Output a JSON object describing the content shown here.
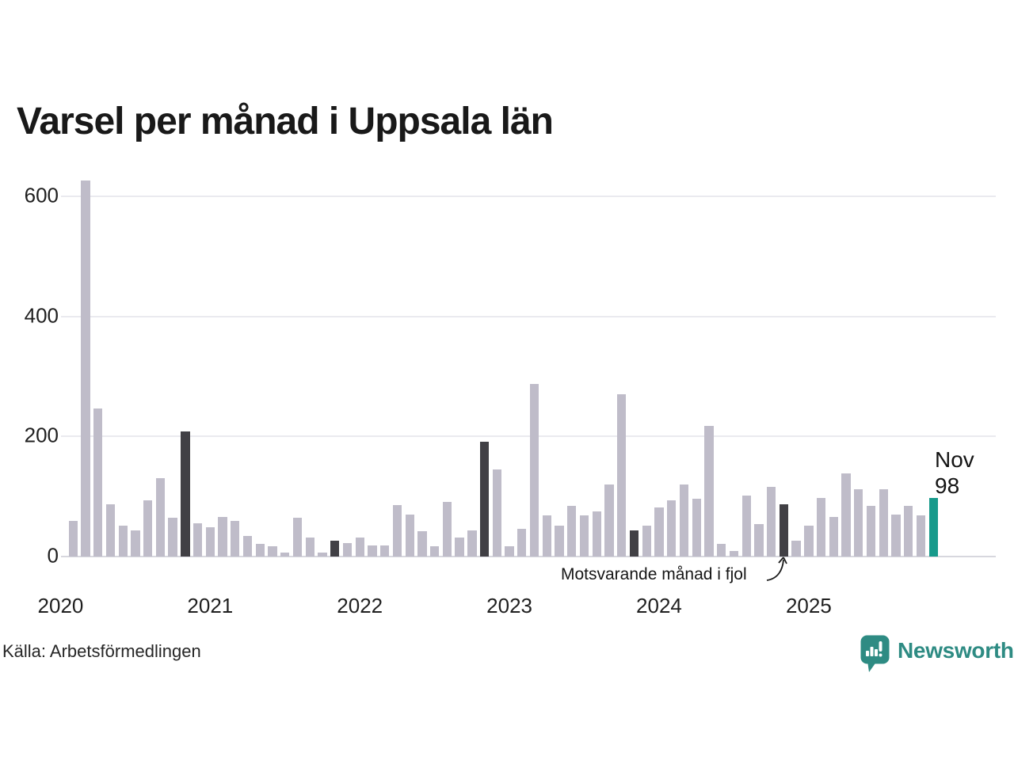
{
  "title": "Varsel per månad i Uppsala län",
  "source": "Källa: Arbetsförmedlingen",
  "branding": {
    "name": "Newsworthy",
    "color": "#2e8b83"
  },
  "annotation": {
    "text": "Motsvarande månad i fjol"
  },
  "current_point": {
    "month": "Nov",
    "value": "98"
  },
  "chart_data": {
    "type": "bar",
    "title": "Varsel per månad i Uppsala län",
    "x": [
      "Feb 2020",
      "Mar 2020",
      "Apr 2020",
      "Maj 2020",
      "Jun 2020",
      "Jul 2020",
      "Aug 2020",
      "Sep 2020",
      "Okt 2020",
      "Nov 2020",
      "Dec 2020",
      "Jan 2021",
      "Feb 2021",
      "Mar 2021",
      "Apr 2021",
      "Maj 2021",
      "Jun 2021",
      "Jul 2021",
      "Aug 2021",
      "Sep 2021",
      "Okt 2021",
      "Nov 2021",
      "Dec 2021",
      "Jan 2022",
      "Feb 2022",
      "Mar 2022",
      "Apr 2022",
      "Maj 2022",
      "Jun 2022",
      "Jul 2022",
      "Aug 2022",
      "Sep 2022",
      "Okt 2022",
      "Nov 2022",
      "Dec 2022",
      "Jan 2023",
      "Feb 2023",
      "Mar 2023",
      "Apr 2023",
      "Maj 2023",
      "Jun 2023",
      "Jul 2023",
      "Aug 2023",
      "Sep 2023",
      "Okt 2023",
      "Nov 2023",
      "Dec 2023",
      "Jan 2024",
      "Feb 2024",
      "Mar 2024",
      "Apr 2024",
      "Maj 2024",
      "Jun 2024",
      "Jul 2024",
      "Aug 2024",
      "Sep 2024",
      "Okt 2024",
      "Nov 2024",
      "Dec 2024",
      "Jan 2025",
      "Feb 2025",
      "Mar 2025",
      "Apr 2025",
      "Maj 2025",
      "Jun 2025",
      "Jul 2025",
      "Aug 2025",
      "Sep 2025",
      "Okt 2025",
      "Nov 2025"
    ],
    "values": [
      59,
      627,
      247,
      87,
      51,
      44,
      93,
      131,
      64,
      209,
      56,
      49,
      66,
      60,
      34,
      21,
      17,
      6,
      65,
      31,
      6,
      26,
      22,
      31,
      18,
      19,
      86,
      70,
      42,
      17,
      91,
      31,
      43,
      191,
      145,
      17,
      46,
      288,
      69,
      52,
      84,
      69,
      75,
      120,
      270,
      44,
      51,
      82,
      93,
      120,
      96,
      218,
      21,
      9,
      101,
      54,
      116,
      87,
      26,
      52,
      97,
      66,
      139,
      112,
      85,
      112,
      70,
      85,
      68,
      98
    ],
    "highlight_dark_indices": [
      9,
      21,
      33,
      45,
      57
    ],
    "highlight_current_index": 69,
    "yticks": [
      0,
      200,
      400,
      600
    ],
    "ylim": [
      0,
      640
    ],
    "year_labels": [
      "2020",
      "2021",
      "2022",
      "2023",
      "2024",
      "2025"
    ],
    "year_label_month_indices": [
      -1,
      11,
      23,
      35,
      47,
      59
    ],
    "grid": true,
    "legend_position": "none",
    "colors": {
      "bar_default": "#bfbcc9",
      "bar_dark": "#414045",
      "bar_current": "#179a8b",
      "gridline": "#eaeaef",
      "axis_line": "#d7d7de"
    }
  }
}
